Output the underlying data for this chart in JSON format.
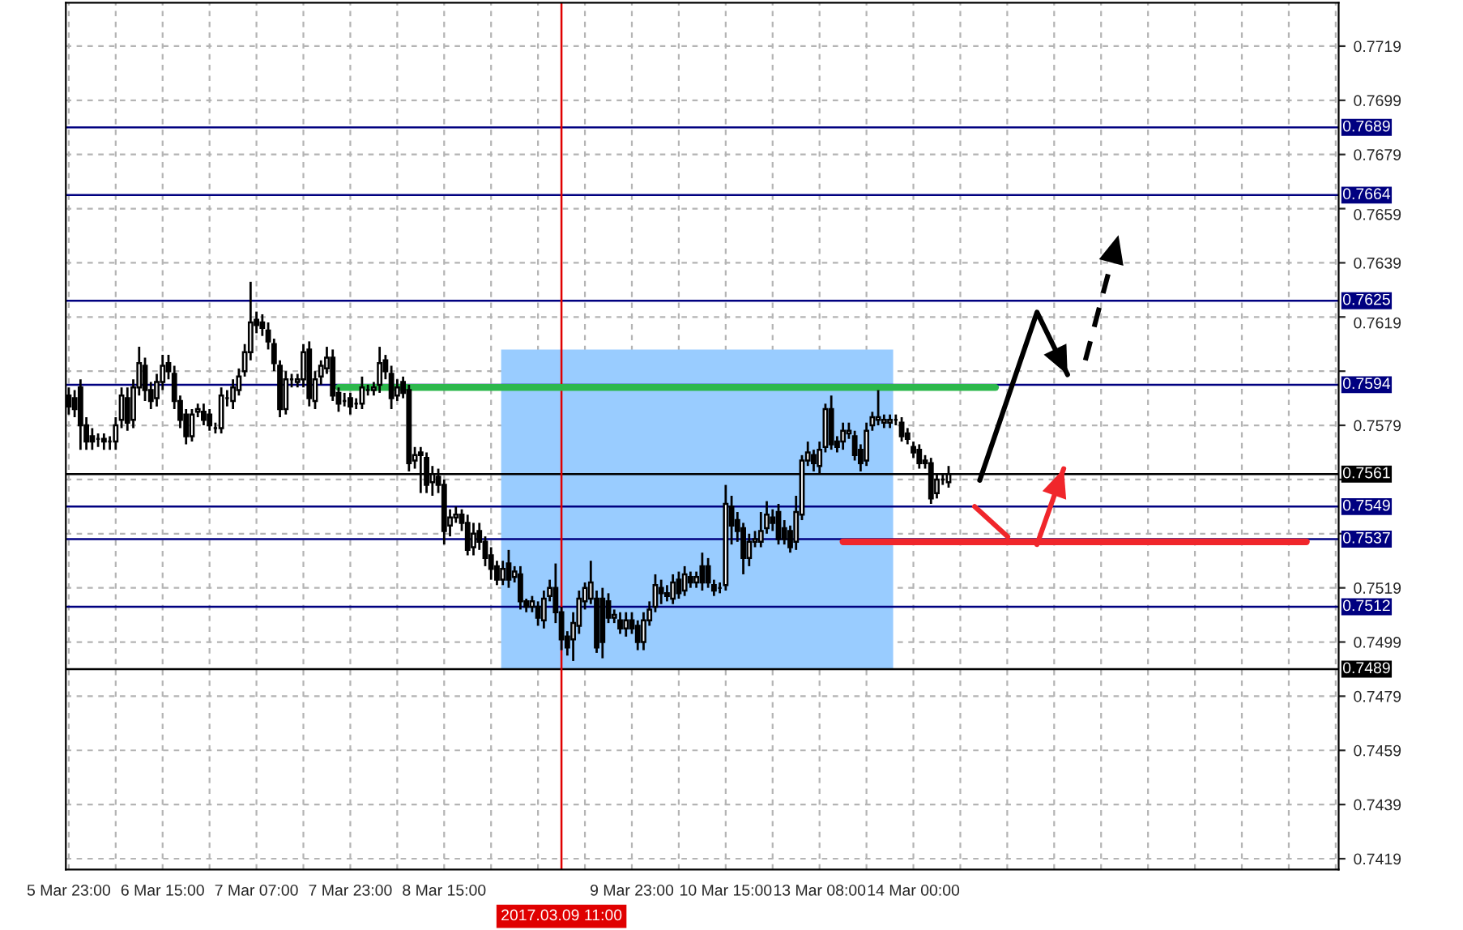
{
  "chart_data": {
    "type": "candlestick",
    "categories": [
      "5 Mar 23:00",
      null,
      null,
      null,
      null,
      null,
      null,
      null,
      null,
      null,
      null,
      null,
      null,
      null,
      null,
      null,
      "6 Mar 15:00",
      null,
      null,
      null,
      null,
      null,
      null,
      null,
      null,
      null,
      null,
      null,
      null,
      null,
      null,
      null,
      "7 Mar 07:00",
      null,
      null,
      null,
      null,
      null,
      null,
      null,
      null,
      null,
      null,
      null,
      null,
      null,
      null,
      null,
      "7 Mar 23:00",
      null,
      null,
      null,
      null,
      null,
      null,
      null,
      null,
      null,
      null,
      null,
      null,
      null,
      null,
      null,
      "8 Mar 15:00",
      null,
      null,
      null,
      null,
      null,
      null,
      null,
      null,
      null,
      null,
      null,
      null,
      null,
      null,
      null,
      null,
      null,
      null,
      null,
      "2017.03.09 11:00",
      null,
      null,
      null,
      null,
      null,
      null,
      null,
      null,
      null,
      null,
      null,
      "9 Mar 23:00",
      null,
      null,
      null,
      null,
      null,
      null,
      null,
      null,
      null,
      null,
      null,
      null,
      null,
      null,
      null,
      "10 Mar 15:00",
      null,
      null,
      null,
      null,
      null,
      null,
      null,
      null,
      null,
      null,
      null,
      null,
      null,
      null,
      null,
      "13 Mar 08:00",
      null,
      null,
      null,
      null,
      null,
      null,
      null,
      null,
      null,
      null,
      null,
      null,
      null,
      null,
      null,
      "14 Mar 00:00",
      null,
      null,
      null,
      null,
      null,
      null,
      null,
      null,
      null,
      null,
      null,
      null,
      null,
      null,
      null,
      null,
      null,
      null,
      null,
      null,
      null,
      null,
      null,
      null,
      null,
      null,
      null,
      null,
      null,
      null,
      null,
      null,
      null,
      null,
      null,
      null,
      null,
      null,
      null,
      null,
      null,
      null,
      null,
      null,
      null,
      null,
      null,
      null,
      null,
      null,
      null,
      null,
      null,
      null,
      null,
      null,
      null,
      null,
      null,
      null,
      null,
      null,
      null,
      null,
      null,
      null,
      null,
      null,
      null,
      null,
      null,
      null
    ],
    "ohlc": [
      [
        0.759,
        0.7593,
        0.7583,
        0.7586
      ],
      [
        0.7589,
        0.7592,
        0.7582,
        0.7585
      ],
      [
        0.7593,
        0.7596,
        0.757,
        0.7579
      ],
      [
        0.7579,
        0.7582,
        0.757,
        0.7573
      ],
      [
        0.7575,
        0.7578,
        0.757,
        0.7573
      ],
      [
        0.7574,
        0.7576,
        0.7571,
        0.7574
      ],
      [
        0.7574,
        0.7576,
        0.757,
        0.7573
      ],
      [
        0.7573,
        0.7575,
        0.757,
        0.7573
      ],
      [
        0.7573,
        0.7582,
        0.757,
        0.7579
      ],
      [
        0.7581,
        0.7593,
        0.7578,
        0.759
      ],
      [
        0.7589,
        0.7593,
        0.7577,
        0.758
      ],
      [
        0.7581,
        0.7596,
        0.7578,
        0.7593
      ],
      [
        0.7593,
        0.7608,
        0.759,
        0.7602
      ],
      [
        0.7601,
        0.7604,
        0.7588,
        0.7592
      ],
      [
        0.7592,
        0.7595,
        0.7585,
        0.7588
      ],
      [
        0.7589,
        0.7598,
        0.7586,
        0.7595
      ],
      [
        0.7595,
        0.7605,
        0.7592,
        0.7601
      ],
      [
        0.7602,
        0.7605,
        0.7596,
        0.7599
      ],
      [
        0.7598,
        0.7601,
        0.7585,
        0.7588
      ],
      [
        0.7588,
        0.759,
        0.7578,
        0.7581
      ],
      [
        0.7583,
        0.7585,
        0.7572,
        0.7575
      ],
      [
        0.7575,
        0.7585,
        0.7573,
        0.7583
      ],
      [
        0.7584,
        0.7587,
        0.7582,
        0.7585
      ],
      [
        0.7584,
        0.7587,
        0.7579,
        0.7581
      ],
      [
        0.7583,
        0.7585,
        0.7577,
        0.7579
      ],
      [
        0.7578,
        0.758,
        0.7576,
        0.7578
      ],
      [
        0.7578,
        0.7593,
        0.7576,
        0.759
      ],
      [
        0.7589,
        0.7592,
        0.7586,
        0.7589
      ],
      [
        0.7588,
        0.7596,
        0.7585,
        0.7593
      ],
      [
        0.7592,
        0.76,
        0.759,
        0.7597
      ],
      [
        0.7599,
        0.7609,
        0.7597,
        0.7606
      ],
      [
        0.7606,
        0.7632,
        0.7603,
        0.7617
      ],
      [
        0.7618,
        0.7621,
        0.7613,
        0.7616
      ],
      [
        0.7617,
        0.762,
        0.7612,
        0.7615
      ],
      [
        0.7614,
        0.7617,
        0.7607,
        0.761
      ],
      [
        0.7609,
        0.7611,
        0.7599,
        0.7602
      ],
      [
        0.7601,
        0.7603,
        0.7582,
        0.7585
      ],
      [
        0.7585,
        0.7599,
        0.7583,
        0.7596
      ],
      [
        0.7596,
        0.7598,
        0.7593,
        0.7596
      ],
      [
        0.7595,
        0.7598,
        0.7593,
        0.7596
      ],
      [
        0.7596,
        0.7609,
        0.7593,
        0.7606
      ],
      [
        0.7607,
        0.761,
        0.7586,
        0.7589
      ],
      [
        0.7588,
        0.7599,
        0.7585,
        0.7596
      ],
      [
        0.7597,
        0.7603,
        0.7594,
        0.7601
      ],
      [
        0.76,
        0.7608,
        0.7598,
        0.7604
      ],
      [
        0.7604,
        0.7607,
        0.7588,
        0.759
      ],
      [
        0.7591,
        0.7593,
        0.7584,
        0.7587
      ],
      [
        0.7588,
        0.7591,
        0.7586,
        0.7588
      ],
      [
        0.7589,
        0.7591,
        0.7583,
        0.7586
      ],
      [
        0.7587,
        0.7589,
        0.7585,
        0.7587
      ],
      [
        0.7587,
        0.7597,
        0.7585,
        0.7593
      ],
      [
        0.7592,
        0.7594,
        0.759,
        0.7592
      ],
      [
        0.7592,
        0.7595,
        0.759,
        0.7593
      ],
      [
        0.7594,
        0.7608,
        0.7591,
        0.7602
      ],
      [
        0.7603,
        0.7605,
        0.7596,
        0.7599
      ],
      [
        0.7598,
        0.7601,
        0.7585,
        0.7589
      ],
      [
        0.759,
        0.7596,
        0.7588,
        0.7593
      ],
      [
        0.7595,
        0.7597,
        0.7589,
        0.7591
      ],
      [
        0.7592,
        0.7594,
        0.7562,
        0.7565
      ],
      [
        0.7566,
        0.7571,
        0.7563,
        0.7568
      ],
      [
        0.7569,
        0.7571,
        0.7554,
        0.7568
      ],
      [
        0.7567,
        0.7569,
        0.7554,
        0.7557
      ],
      [
        0.7558,
        0.7564,
        0.7553,
        0.7561
      ],
      [
        0.756,
        0.7563,
        0.7554,
        0.7557
      ],
      [
        0.7557,
        0.7559,
        0.7535,
        0.754
      ],
      [
        0.7542,
        0.7548,
        0.7538,
        0.7545
      ],
      [
        0.7545,
        0.7549,
        0.7543,
        0.7546
      ],
      [
        0.7546,
        0.7548,
        0.754,
        0.7543
      ],
      [
        0.7543,
        0.7546,
        0.7531,
        0.7533
      ],
      [
        0.7534,
        0.7543,
        0.7531,
        0.7539
      ],
      [
        0.754,
        0.7543,
        0.7533,
        0.7536
      ],
      [
        0.7536,
        0.7538,
        0.7527,
        0.753
      ],
      [
        0.7531,
        0.7534,
        0.7522,
        0.7526
      ],
      [
        0.7527,
        0.7529,
        0.752,
        0.7522
      ],
      [
        0.7522,
        0.7529,
        0.752,
        0.7526
      ],
      [
        0.7528,
        0.7533,
        0.7519,
        0.7522
      ],
      [
        0.7523,
        0.7527,
        0.7521,
        0.7525
      ],
      [
        0.7524,
        0.7527,
        0.7511,
        0.7514
      ],
      [
        0.7514,
        0.7515,
        0.751,
        0.7512
      ],
      [
        0.7512,
        0.7516,
        0.751,
        0.7514
      ],
      [
        0.7512,
        0.7514,
        0.7505,
        0.7508
      ],
      [
        0.7507,
        0.7518,
        0.7504,
        0.7515
      ],
      [
        0.7516,
        0.7522,
        0.7514,
        0.7519
      ],
      [
        0.7519,
        0.7528,
        0.7506,
        0.751
      ],
      [
        0.751,
        0.7512,
        0.7496,
        0.75
      ],
      [
        0.7501,
        0.7503,
        0.7494,
        0.7497
      ],
      [
        0.75,
        0.751,
        0.7492,
        0.7506
      ],
      [
        0.7505,
        0.7518,
        0.7502,
        0.7515
      ],
      [
        0.7514,
        0.7521,
        0.7511,
        0.7519
      ],
      [
        0.7515,
        0.7529,
        0.7513,
        0.7521
      ],
      [
        0.7515,
        0.7518,
        0.7495,
        0.7497
      ],
      [
        0.7515,
        0.7519,
        0.7493,
        0.7499
      ],
      [
        0.7514,
        0.7517,
        0.7506,
        0.7508
      ],
      [
        0.7508,
        0.7511,
        0.7506,
        0.7509
      ],
      [
        0.7507,
        0.751,
        0.7502,
        0.7504
      ],
      [
        0.7504,
        0.751,
        0.7501,
        0.7507
      ],
      [
        0.7507,
        0.751,
        0.7502,
        0.7504
      ],
      [
        0.7505,
        0.7507,
        0.7496,
        0.7499
      ],
      [
        0.7499,
        0.751,
        0.7496,
        0.7507
      ],
      [
        0.7507,
        0.7514,
        0.7505,
        0.7511
      ],
      [
        0.7512,
        0.7524,
        0.751,
        0.752
      ],
      [
        0.7519,
        0.7522,
        0.7513,
        0.7517
      ],
      [
        0.7517,
        0.752,
        0.7514,
        0.7516
      ],
      [
        0.7515,
        0.7524,
        0.7513,
        0.7521
      ],
      [
        0.7522,
        0.7525,
        0.7515,
        0.7517
      ],
      [
        0.7518,
        0.7527,
        0.7516,
        0.7524
      ],
      [
        0.7523,
        0.7525,
        0.7519,
        0.7521
      ],
      [
        0.7521,
        0.7525,
        0.7519,
        0.7523
      ],
      [
        0.7527,
        0.7532,
        0.7518,
        0.7521
      ],
      [
        0.7527,
        0.753,
        0.7519,
        0.7521
      ],
      [
        0.752,
        0.7522,
        0.7516,
        0.7518
      ],
      [
        0.7519,
        0.7521,
        0.7517,
        0.7519
      ],
      [
        0.752,
        0.7557,
        0.7518,
        0.755
      ],
      [
        0.7549,
        0.7553,
        0.7535,
        0.7542
      ],
      [
        0.7544,
        0.7547,
        0.7536,
        0.754
      ],
      [
        0.7541,
        0.7543,
        0.7524,
        0.753
      ],
      [
        0.753,
        0.7539,
        0.7527,
        0.7536
      ],
      [
        0.7536,
        0.754,
        0.7534,
        0.7537
      ],
      [
        0.7536,
        0.7547,
        0.7534,
        0.754
      ],
      [
        0.7541,
        0.7551,
        0.7539,
        0.7546
      ],
      [
        0.7545,
        0.7548,
        0.754,
        0.7543
      ],
      [
        0.7547,
        0.755,
        0.7535,
        0.7537
      ],
      [
        0.7541,
        0.7544,
        0.7535,
        0.7537
      ],
      [
        0.754,
        0.7542,
        0.7532,
        0.7534
      ],
      [
        0.7536,
        0.7553,
        0.7533,
        0.7547
      ],
      [
        0.7546,
        0.7568,
        0.7544,
        0.7566
      ],
      [
        0.7566,
        0.7573,
        0.7564,
        0.7569
      ],
      [
        0.7568,
        0.757,
        0.7562,
        0.7565
      ],
      [
        0.7564,
        0.7573,
        0.7561,
        0.757
      ],
      [
        0.7571,
        0.7587,
        0.7569,
        0.7585
      ],
      [
        0.7585,
        0.759,
        0.757,
        0.7572
      ],
      [
        0.7573,
        0.7575,
        0.7569,
        0.7571
      ],
      [
        0.7573,
        0.758,
        0.757,
        0.7577
      ],
      [
        0.7576,
        0.758,
        0.7574,
        0.7577
      ],
      [
        0.7575,
        0.7577,
        0.7566,
        0.7568
      ],
      [
        0.757,
        0.7572,
        0.7562,
        0.7565
      ],
      [
        0.7566,
        0.758,
        0.7564,
        0.7577
      ],
      [
        0.7579,
        0.7584,
        0.7577,
        0.7582
      ],
      [
        0.7581,
        0.7592,
        0.7579,
        0.7582
      ],
      [
        0.758,
        0.7583,
        0.7578,
        0.7581
      ],
      [
        0.758,
        0.7583,
        0.7578,
        0.7581
      ],
      [
        0.7581,
        0.7583,
        0.7579,
        0.7581
      ],
      [
        0.758,
        0.7582,
        0.7573,
        0.7575
      ],
      [
        0.7576,
        0.7578,
        0.7572,
        0.7574
      ],
      [
        0.7571,
        0.7573,
        0.7567,
        0.7569
      ],
      [
        0.757,
        0.7572,
        0.7563,
        0.7565
      ],
      [
        0.7566,
        0.7568,
        0.7563,
        0.7565
      ],
      [
        0.7565,
        0.7567,
        0.755,
        0.7552
      ],
      [
        0.7554,
        0.7561,
        0.7552,
        0.7559
      ],
      [
        0.7559,
        0.7561,
        0.7557,
        0.7559
      ],
      [
        0.7558,
        0.7564,
        0.7556,
        0.7561
      ],
      null,
      null,
      null,
      null,
      null,
      null,
      null,
      null,
      null,
      null,
      null,
      null,
      null,
      null,
      null,
      null,
      null,
      null,
      null,
      null,
      null,
      null,
      null,
      null,
      null,
      null,
      null,
      null,
      null,
      null,
      null,
      null,
      null,
      null,
      null,
      null,
      null,
      null,
      null,
      null,
      null,
      null,
      null,
      null,
      null,
      null,
      null,
      null,
      null,
      null,
      null,
      null,
      null,
      null,
      null,
      null,
      null,
      null,
      null,
      null,
      null,
      null,
      null,
      null,
      null,
      null
    ],
    "series": [
      {
        "type": "line",
        "color": "#2db84d",
        "values": [
          null,
          null,
          null,
          null,
          null,
          null,
          null,
          null,
          null,
          null,
          null,
          null,
          null,
          null,
          null,
          null,
          null,
          null,
          null,
          null,
          null,
          null,
          null,
          null,
          null,
          null,
          null,
          null,
          null,
          null,
          null,
          null,
          null,
          null,
          null,
          null,
          null,
          null,
          null,
          null,
          null,
          null,
          null,
          null,
          null,
          null,
          0.7593,
          0.7593,
          0.7593,
          0.7593,
          0.7593,
          0.7593,
          0.7593,
          0.7593,
          0.7593,
          0.7593,
          0.7593,
          0.7593,
          0.7593,
          0.7593,
          0.7593,
          0.7593,
          0.7593,
          0.7593,
          0.7593,
          0.7593,
          0.7593,
          0.7593,
          0.7593,
          0.7593,
          0.7593,
          0.7593,
          0.7593,
          0.7593,
          0.7593,
          0.7593,
          0.7593,
          0.7593,
          0.7593,
          0.7593,
          0.7593,
          0.7593,
          0.7593,
          0.7593,
          0.7593,
          0.7593,
          0.7593,
          0.7593,
          0.7593,
          0.7593,
          0.7593,
          0.7593,
          0.7593,
          0.7593,
          0.7593,
          0.7593,
          0.7593,
          0.7593,
          0.7593,
          0.7593,
          0.7593,
          0.7593,
          0.7593,
          0.7593,
          0.7593,
          0.7593,
          0.7593,
          0.7593,
          0.7593,
          0.7593,
          0.7593,
          0.7593,
          0.7593,
          0.7593,
          0.7593,
          0.7593,
          0.7593,
          0.7593,
          0.7593,
          0.7593,
          0.7593,
          0.7593,
          0.7593,
          0.7593,
          0.7593,
          0.7593,
          0.7593,
          0.7593,
          0.7593,
          0.7593,
          0.7593,
          0.7593,
          0.7593,
          0.7593,
          0.7593,
          0.7593,
          0.7593,
          0.7593,
          0.7593,
          0.7593,
          0.7593,
          0.7593,
          0.7593,
          0.7593,
          0.7593,
          0.7593,
          0.7593,
          0.7593,
          0.7593,
          0.7593,
          0.7593,
          0.7593,
          0.7593,
          0.7593,
          0.7593,
          0.7593,
          0.7593,
          0.7593,
          0.7593,
          null,
          null,
          null,
          null,
          null,
          null,
          null,
          null,
          null,
          null,
          null,
          null,
          null,
          null,
          null,
          null,
          null,
          null,
          null,
          null,
          null,
          null,
          null,
          null,
          null,
          null,
          null,
          null,
          null,
          null,
          null,
          null,
          null,
          null,
          null,
          null,
          null,
          null,
          null,
          null,
          null,
          null,
          null,
          null,
          null,
          null,
          null,
          null,
          null,
          null,
          null,
          null,
          null,
          null,
          null,
          null,
          null,
          null
        ]
      },
      {
        "type": "line",
        "color": "#f0262b",
        "values": [
          null,
          null,
          null,
          null,
          null,
          null,
          null,
          null,
          null,
          null,
          null,
          null,
          null,
          null,
          null,
          null,
          null,
          null,
          null,
          null,
          null,
          null,
          null,
          null,
          null,
          null,
          null,
          null,
          null,
          null,
          null,
          null,
          null,
          null,
          null,
          null,
          null,
          null,
          null,
          null,
          null,
          null,
          null,
          null,
          null,
          null,
          null,
          null,
          null,
          null,
          null,
          null,
          null,
          null,
          null,
          null,
          null,
          null,
          null,
          null,
          null,
          null,
          null,
          null,
          null,
          null,
          null,
          null,
          null,
          null,
          null,
          null,
          null,
          null,
          null,
          null,
          null,
          null,
          null,
          null,
          null,
          null,
          null,
          null,
          null,
          null,
          null,
          null,
          null,
          null,
          null,
          null,
          null,
          null,
          null,
          null,
          null,
          null,
          null,
          null,
          null,
          null,
          null,
          null,
          null,
          null,
          null,
          null,
          null,
          null,
          null,
          null,
          null,
          null,
          null,
          null,
          null,
          null,
          null,
          null,
          null,
          null,
          null,
          null,
          null,
          null,
          null,
          null,
          null,
          null,
          null,
          null,
          0.7536,
          0.7536,
          0.7536,
          0.7536,
          0.7536,
          0.7536,
          0.7536,
          0.7536,
          0.7536,
          0.7536,
          0.7536,
          0.7536,
          0.7536,
          0.7536,
          0.7536,
          0.7536,
          0.7536,
          0.7536,
          0.7536,
          0.7536,
          0.7536,
          0.7536,
          0.7536,
          0.7536,
          0.7536,
          0.7536,
          0.7536,
          0.7536,
          0.7536,
          0.7536,
          0.7536,
          0.7536,
          0.7536,
          0.7536,
          0.7536,
          0.7536,
          0.7536,
          0.7536,
          0.7536,
          0.7536,
          0.7536,
          0.7536,
          0.7536,
          0.7536,
          0.7536,
          0.7536,
          0.7536,
          0.7536,
          0.7536,
          0.7536,
          0.7536,
          0.7536,
          0.7536,
          0.7536,
          0.7536,
          0.7536,
          0.7536,
          0.7536,
          0.7536,
          0.7536,
          0.7536,
          0.7536,
          0.7536,
          0.7536,
          0.7536,
          0.7536,
          0.7536,
          0.7536,
          0.7536,
          0.7536,
          0.7536,
          0.7536,
          0.7536,
          0.7536,
          0.7536,
          0.7536,
          0.7536,
          0.7536,
          0.7536,
          0.7536,
          null,
          null,
          null,
          null,
          null
        ]
      }
    ],
    "ylim": [
      0.7415,
      0.7735
    ],
    "yticks": [
      {
        "value": 0.7419,
        "label": "0.7419"
      },
      {
        "value": 0.7439,
        "label": "0.7439"
      },
      {
        "value": 0.7459,
        "label": "0.7459"
      },
      {
        "value": 0.7479,
        "label": "0.7479"
      },
      {
        "value": 0.7499,
        "label": "0.7499"
      },
      {
        "value": 0.7519,
        "label": "0.7519"
      },
      {
        "value": 0.7539,
        "label": null
      },
      {
        "value": 0.7559,
        "label": null
      },
      {
        "value": 0.7579,
        "label": "0.7579"
      },
      {
        "value": 0.7599,
        "label": null
      },
      {
        "value": 0.7619,
        "label": "0.7619"
      },
      {
        "value": 0.7639,
        "label": "0.7639"
      },
      {
        "value": 0.7659,
        "label": "0.7659"
      },
      {
        "value": 0.7679,
        "label": "0.7679"
      },
      {
        "value": 0.7699,
        "label": "0.7699"
      },
      {
        "value": 0.7719,
        "label": "0.7719"
      }
    ],
    "grid": true,
    "ref_lines": [
      {
        "axis": "y",
        "value": 0.7689,
        "label": "0.7689",
        "color": "#000080"
      },
      {
        "axis": "y",
        "value": 0.7664,
        "label": "0.7664",
        "color": "#000080"
      },
      {
        "axis": "y",
        "value": 0.7625,
        "label": "0.7625",
        "color": "#000080"
      },
      {
        "axis": "y",
        "value": 0.7594,
        "label": "0.7594",
        "color": "#000080"
      },
      {
        "axis": "y",
        "value": 0.7561,
        "label": "0.7561",
        "color": "#000000",
        "line_style": "solid"
      },
      {
        "axis": "y",
        "value": 0.7549,
        "label": "0.7549",
        "color": "#000080"
      },
      {
        "axis": "y",
        "value": 0.7537,
        "label": "0.7537",
        "color": "#000080"
      },
      {
        "axis": "y",
        "value": 0.7512,
        "label": "0.7512",
        "color": "#000080"
      },
      {
        "axis": "y",
        "value": 0.7489,
        "label": "0.7489",
        "color": "#000000"
      },
      {
        "axis": "x",
        "value": "2017.03.09 11:00",
        "color": "#e00000"
      }
    ]
  }
}
